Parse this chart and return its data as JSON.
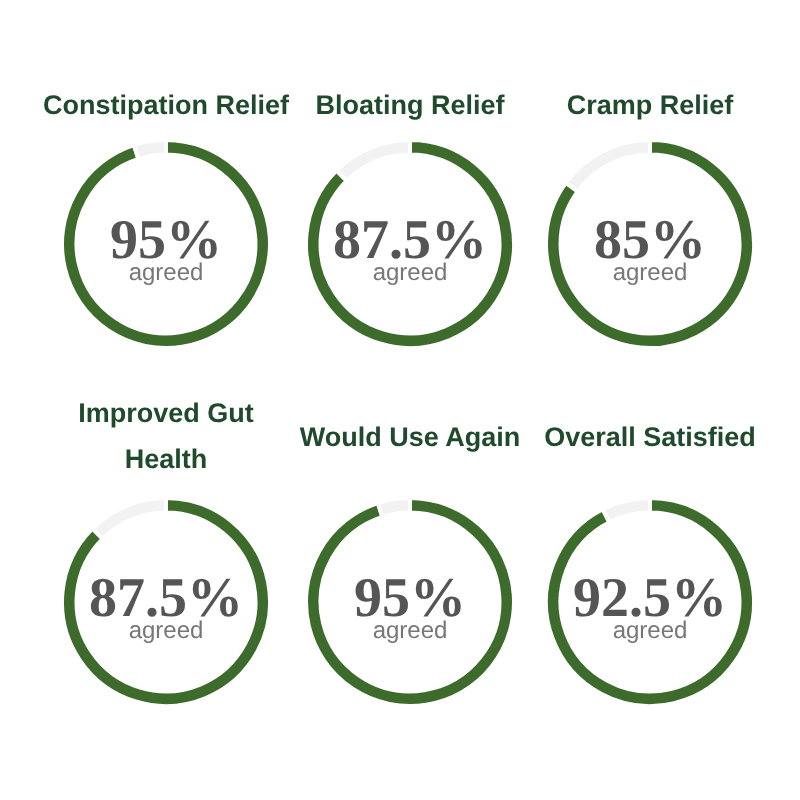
{
  "chart_data": [
    {
      "type": "donut",
      "title": "Constipation Relief",
      "categories": [
        "agreed",
        null
      ],
      "values": [
        95,
        5
      ],
      "colors": [
        "#3d6b2b",
        "#f2f2f2"
      ],
      "value_labels": [
        "95%",
        null
      ]
    },
    {
      "type": "donut",
      "title": "Bloating Relief",
      "categories": [
        "agreed",
        null
      ],
      "values": [
        87.5,
        12.5
      ],
      "colors": [
        "#3d6b2b",
        "#f2f2f2"
      ],
      "value_labels": [
        "87.5%",
        null
      ]
    },
    {
      "type": "donut",
      "title": "Cramp Relief",
      "categories": [
        "agreed",
        null
      ],
      "values": [
        85,
        15
      ],
      "colors": [
        "#3d6b2b",
        "#f2f2f2"
      ],
      "value_labels": [
        "85%",
        null
      ]
    },
    {
      "type": "donut",
      "title": "Improved Gut Health",
      "categories": [
        "agreed",
        null
      ],
      "values": [
        87.5,
        12.5
      ],
      "colors": [
        "#3d6b2b",
        "#f2f2f2"
      ],
      "value_labels": [
        "87.5%",
        null
      ]
    },
    {
      "type": "donut",
      "title": "Would Use Again",
      "categories": [
        "agreed",
        null
      ],
      "values": [
        95,
        5
      ],
      "colors": [
        "#3d6b2b",
        "#f2f2f2"
      ],
      "value_labels": [
        "95%",
        null
      ]
    },
    {
      "type": "donut",
      "title": "Overall Satisfied",
      "categories": [
        "agreed",
        null
      ],
      "values": [
        92.5,
        7.5
      ],
      "colors": [
        "#3d6b2b",
        "#f2f2f2"
      ],
      "value_labels": [
        "92.5%",
        null
      ]
    }
  ]
}
